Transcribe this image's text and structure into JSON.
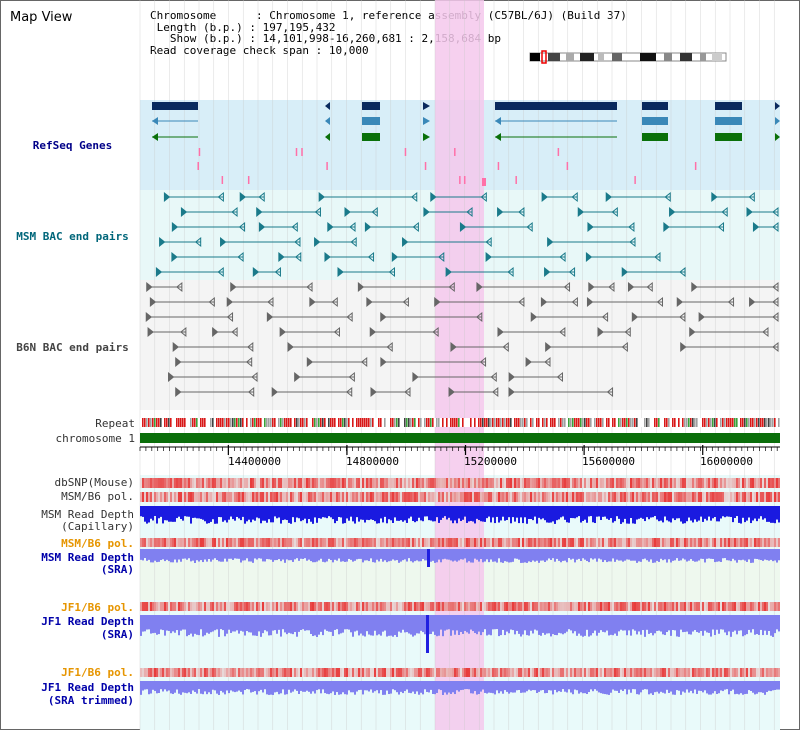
{
  "title": "Map View",
  "info": {
    "chromosome_label": "Chromosome",
    "chromosome_value": "Chromosome 1, reference assembly (C57BL/6J) (Build 37)",
    "length_label": "Length (b.p.)",
    "length_value": "197,195,432",
    "show_label": "Show (b.p.)",
    "show_value": "14,101,998-16,260,681 : 2,158,684 bp",
    "span_label": "Read coverage check span",
    "span_value": "10,000"
  },
  "tracks": {
    "refseq": "RefSeq Genes",
    "msm_bac": "MSM BAC end pairs",
    "b6n_bac": "B6N BAC end pairs",
    "repeat": "Repeat",
    "chromosome": "chromosome 1",
    "dbsnp": "dbSNP(Mouse)",
    "msm_b6_pol_1": "MSM/B6 pol.",
    "msm_depth_cap_1": "MSM Read Depth",
    "msm_depth_cap_2": "(Capillary)",
    "msm_b6_pol_2": "MSM/B6 pol.",
    "msm_depth_sra_1": "MSM Read Depth",
    "msm_depth_sra_2": "(SRA)",
    "jf1_b6_pol_1": "JF1/B6 pol.",
    "jf1_depth_sra_1": "JF1 Read Depth",
    "jf1_depth_sra_2": "(SRA)",
    "jf1_b6_pol_2": "JF1/B6 pol.",
    "jf1_depth_trim_1": "JF1 Read Depth",
    "jf1_depth_trim_2": "(SRA trimmed)"
  },
  "axis": {
    "ticks": [
      "14400000",
      "14800000",
      "15200000",
      "15600000",
      "16000000"
    ],
    "tick_values": [
      14400000,
      14800000,
      15200000,
      15600000,
      16000000
    ],
    "start": 14101998,
    "end": 16260681
  },
  "colors": {
    "refseq_bg": "#d8eef8",
    "bac_bg": "#e8f8f8",
    "highlight": "#f5c8ec",
    "gene_dark": "#0a2a5e",
    "gene_mid": "#3a88b8",
    "gene_green": "#0a700a",
    "bac_teal": "#1a7a8a",
    "bac_gray": "#666666",
    "chromosome_green": "#0a6e0a",
    "depth_blue_dark": "#1a1ae0",
    "depth_blue_light": "#8080f0",
    "pol_red": "#e83030"
  }
}
